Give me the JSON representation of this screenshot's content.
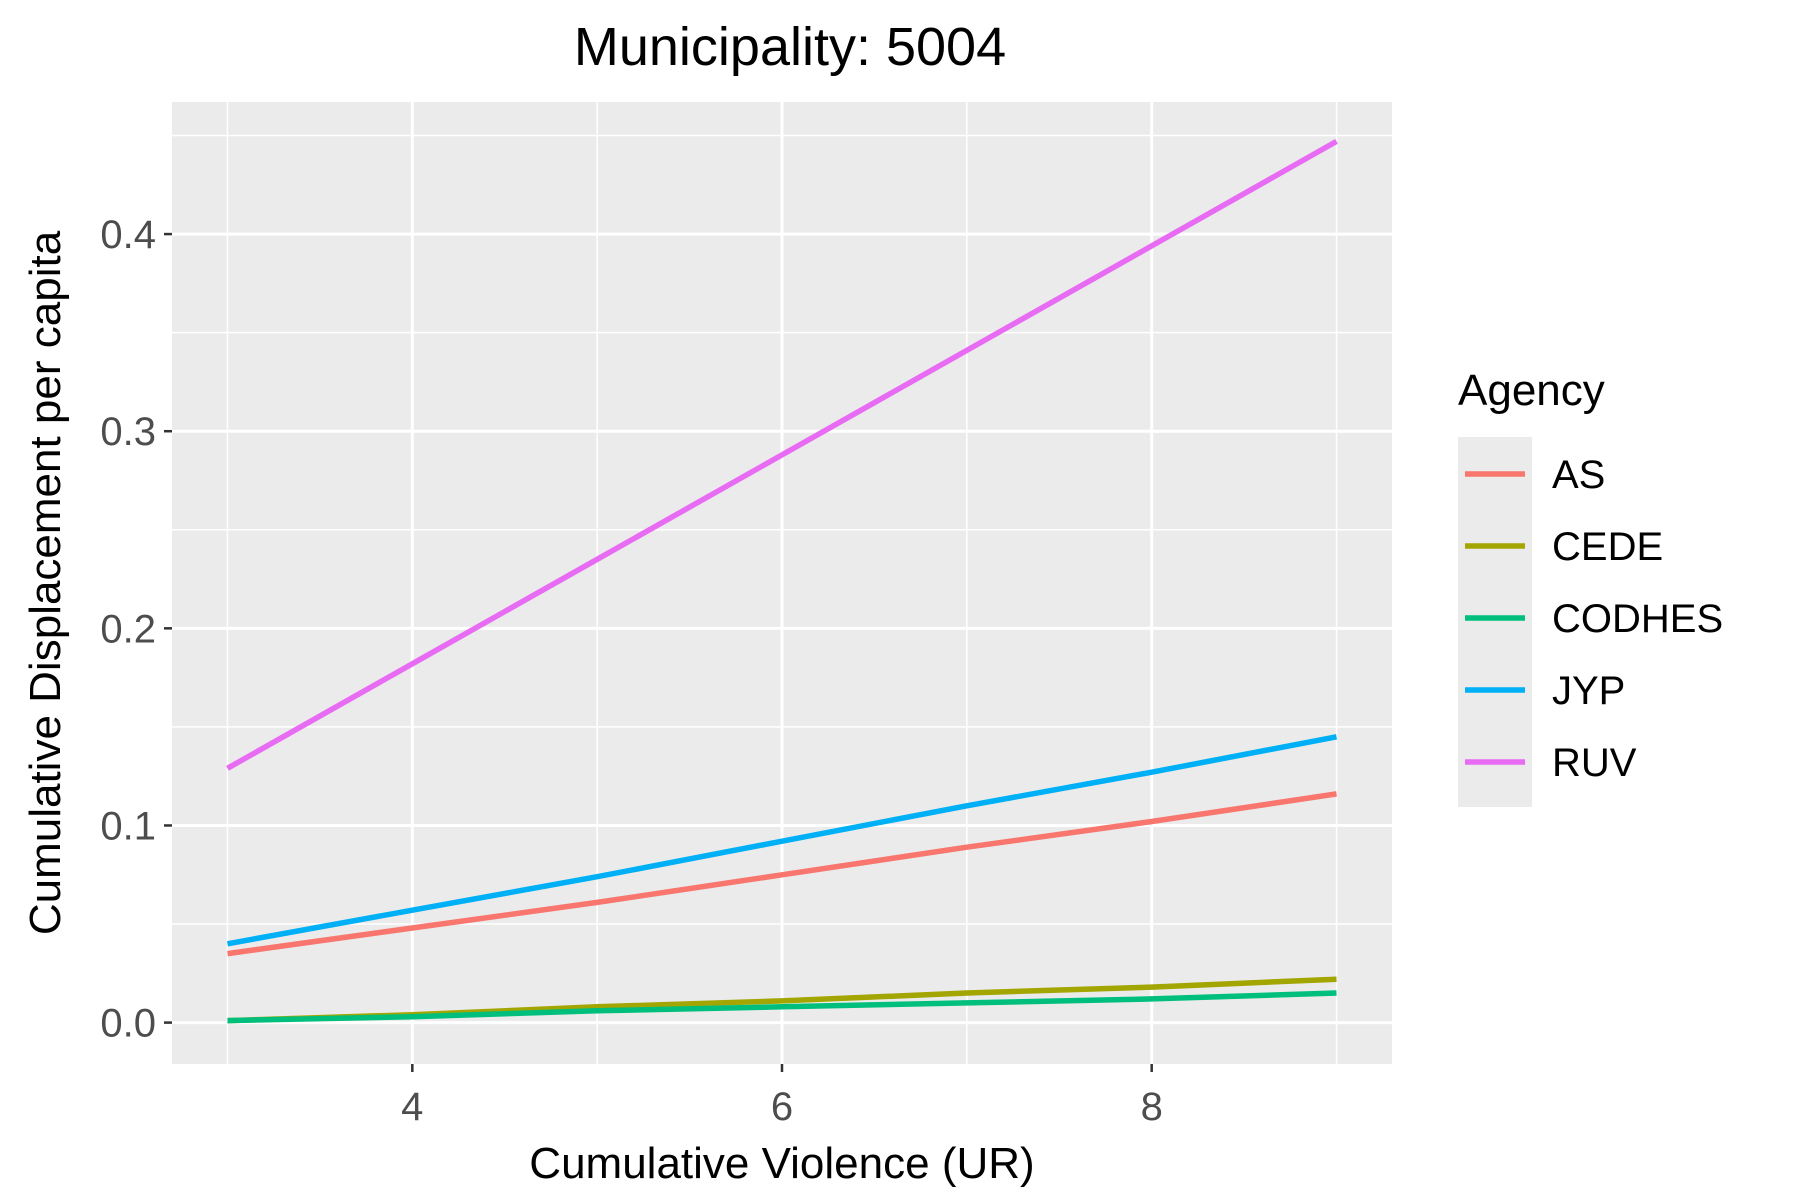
{
  "chart_data": {
    "type": "line",
    "title": "Municipality: 5004",
    "xlabel": "Cumulative Violence (UR)",
    "ylabel": "Cumulative Displacement per capita",
    "xlim": [
      2.7,
      9.3
    ],
    "ylim": [
      -0.021,
      0.467
    ],
    "x_ticks": [
      4,
      6,
      8
    ],
    "x_tick_labels": [
      "4",
      "6",
      "8"
    ],
    "y_ticks": [
      0.0,
      0.1,
      0.2,
      0.3,
      0.4
    ],
    "y_tick_labels": [
      "0.0",
      "0.1",
      "0.2",
      "0.3",
      "0.4"
    ],
    "grid": true,
    "legend": {
      "title": "Agency",
      "position": "right"
    },
    "series": [
      {
        "name": "AS",
        "color": "#F8766D",
        "x": [
          3,
          4,
          5,
          6,
          7,
          8,
          9
        ],
        "y": [
          0.035,
          0.048,
          0.061,
          0.075,
          0.089,
          0.102,
          0.116
        ]
      },
      {
        "name": "CEDE",
        "color": "#A3A500",
        "x": [
          3,
          4,
          5,
          6,
          7,
          8,
          9
        ],
        "y": [
          0.001,
          0.004,
          0.008,
          0.011,
          0.015,
          0.018,
          0.022
        ]
      },
      {
        "name": "CODHES",
        "color": "#00BF7D",
        "x": [
          3,
          4,
          5,
          6,
          7,
          8,
          9
        ],
        "y": [
          0.001,
          0.003,
          0.006,
          0.008,
          0.01,
          0.012,
          0.015
        ]
      },
      {
        "name": "JYP",
        "color": "#00B0F6",
        "x": [
          3,
          4,
          5,
          6,
          7,
          8,
          9
        ],
        "y": [
          0.04,
          0.057,
          0.074,
          0.092,
          0.11,
          0.127,
          0.145
        ]
      },
      {
        "name": "RUV",
        "color": "#E76BF3",
        "x": [
          3,
          4,
          5,
          6,
          7,
          8,
          9
        ],
        "y": [
          0.129,
          0.182,
          0.235,
          0.288,
          0.341,
          0.394,
          0.447
        ]
      }
    ]
  }
}
